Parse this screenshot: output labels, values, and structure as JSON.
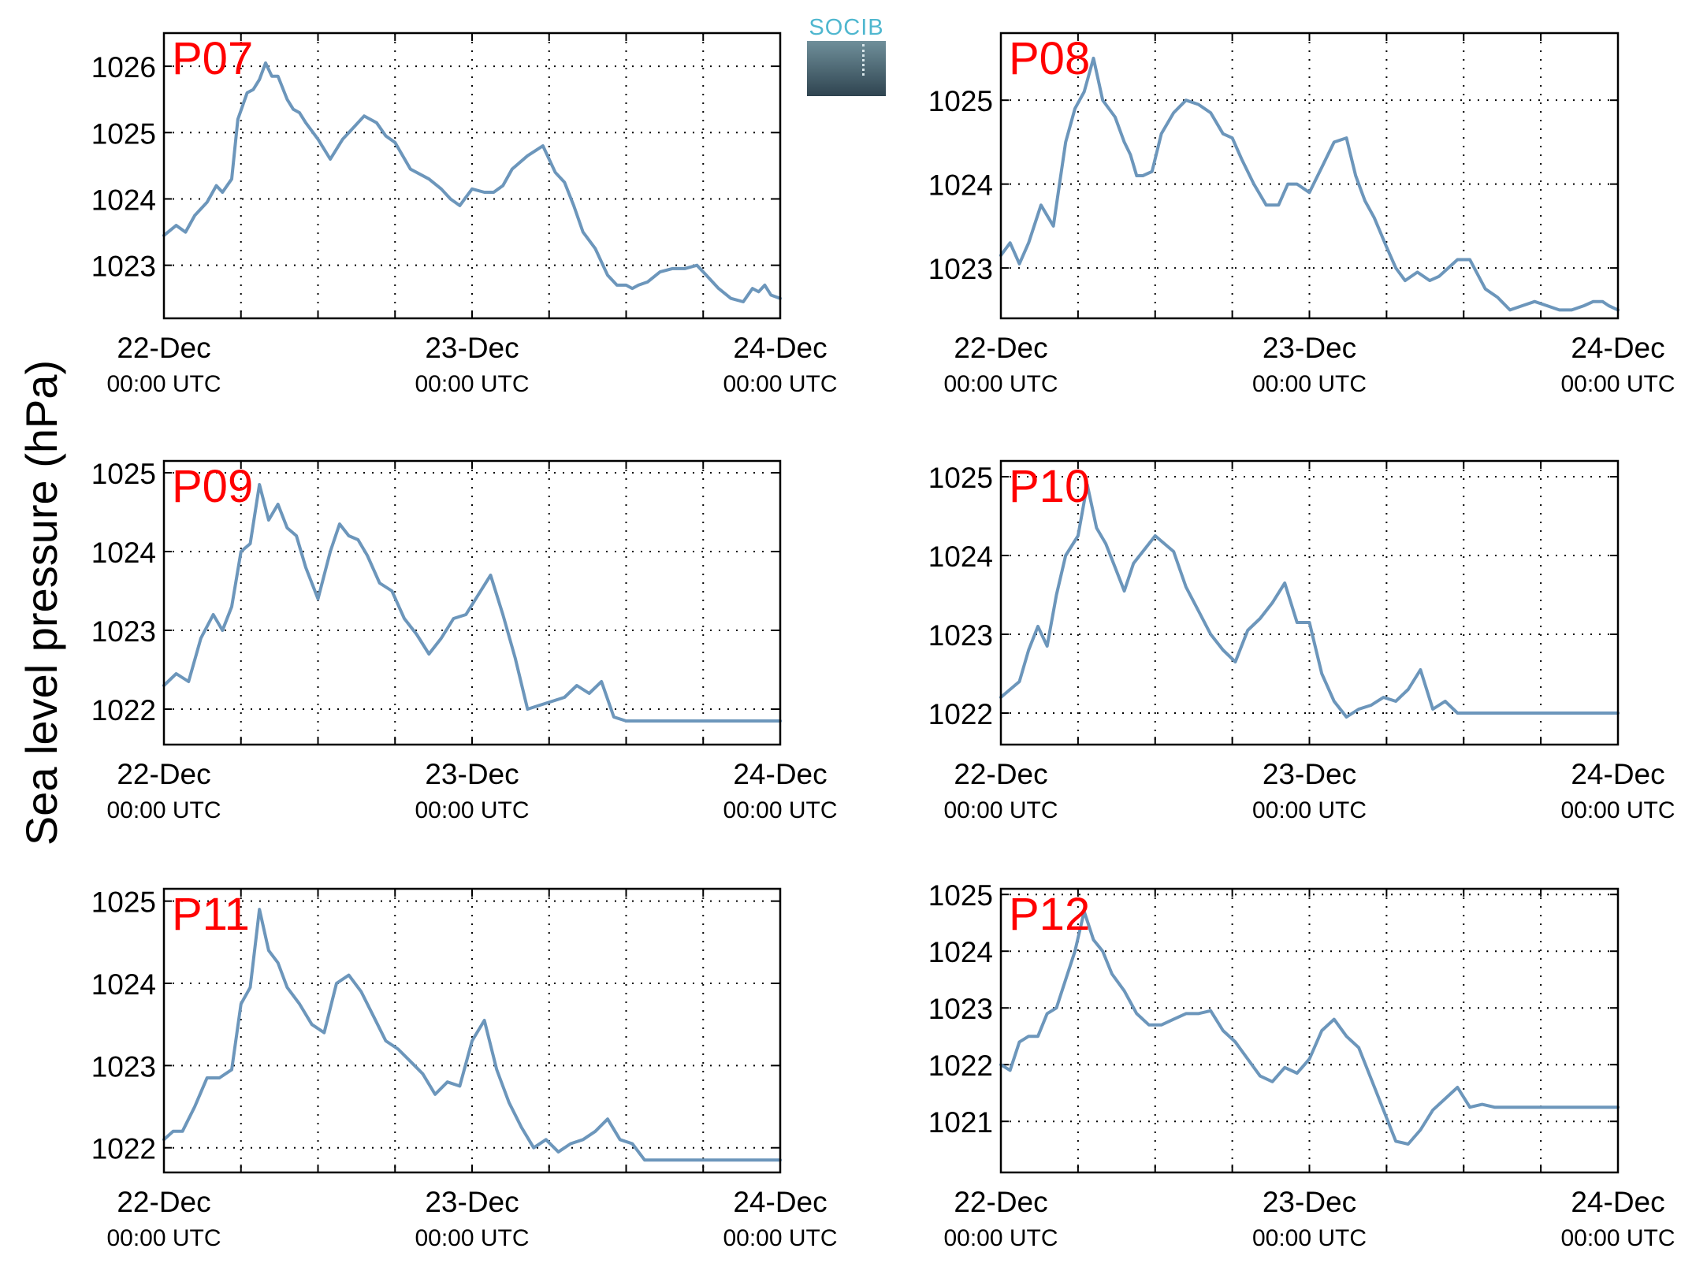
{
  "figure": {
    "ylabel": "Sea level pressure (hPa)",
    "logo_text": "SOCIB",
    "colors": {
      "line": "#6c96bb",
      "station_label": "#ff0000",
      "axes": "#000000",
      "grid": "#000000"
    }
  },
  "chart_data": [
    {
      "type": "line",
      "title": "P07",
      "xticks": [
        {
          "x": 0,
          "date": "22-Dec",
          "time": "00:00 UTC"
        },
        {
          "x": 1,
          "date": "23-Dec",
          "time": "00:00 UTC"
        },
        {
          "x": 2,
          "date": "24-Dec",
          "time": "00:00 UTC"
        }
      ],
      "xunit": "days since 22-Dec 00:00 UTC",
      "xlim": [
        0,
        2
      ],
      "ylim": [
        1022.2,
        1026.5
      ],
      "yticks": [
        1023,
        1024,
        1025,
        1026
      ],
      "grid": true,
      "series": [
        {
          "x": [
            0,
            0.04,
            0.07,
            0.1,
            0.14,
            0.17,
            0.19,
            0.22,
            0.24,
            0.27,
            0.29,
            0.31,
            0.33,
            0.35,
            0.37,
            0.4,
            0.42,
            0.44,
            0.46,
            0.5,
            0.54,
            0.58,
            0.61,
            0.65,
            0.69,
            0.72,
            0.75,
            0.8,
            0.86,
            0.9,
            0.93,
            0.96,
            1.0,
            1.04,
            1.07,
            1.1,
            1.13,
            1.18,
            1.23,
            1.27,
            1.3,
            1.33,
            1.36,
            1.4,
            1.44,
            1.47,
            1.5,
            1.52,
            1.54,
            1.57,
            1.61,
            1.65,
            1.69,
            1.73,
            1.76,
            1.8,
            1.84,
            1.88,
            1.91,
            1.93,
            1.95,
            1.97,
            2.0
          ],
          "y": [
            1023.45,
            1023.6,
            1023.5,
            1023.75,
            1023.95,
            1024.2,
            1024.1,
            1024.3,
            1025.2,
            1025.6,
            1025.65,
            1025.8,
            1026.05,
            1025.85,
            1025.85,
            1025.5,
            1025.35,
            1025.3,
            1025.15,
            1024.9,
            1024.6,
            1024.9,
            1025.05,
            1025.25,
            1025.15,
            1024.95,
            1024.85,
            1024.45,
            1024.3,
            1024.15,
            1024.0,
            1023.9,
            1024.15,
            1024.1,
            1024.1,
            1024.2,
            1024.45,
            1024.65,
            1024.8,
            1024.4,
            1024.25,
            1023.9,
            1023.5,
            1023.25,
            1022.85,
            1022.7,
            1022.7,
            1022.65,
            1022.7,
            1022.75,
            1022.9,
            1022.95,
            1022.95,
            1023.0,
            1022.85,
            1022.65,
            1022.5,
            1022.45,
            1022.65,
            1022.6,
            1022.7,
            1022.55,
            1022.5
          ]
        }
      ]
    },
    {
      "type": "line",
      "title": "P08",
      "xticks": [
        {
          "x": 0,
          "date": "22-Dec",
          "time": "00:00 UTC"
        },
        {
          "x": 1,
          "date": "23-Dec",
          "time": "00:00 UTC"
        },
        {
          "x": 2,
          "date": "24-Dec",
          "time": "00:00 UTC"
        }
      ],
      "xunit": "days since 22-Dec 00:00 UTC",
      "xlim": [
        0,
        2
      ],
      "ylim": [
        1022.4,
        1025.8
      ],
      "yticks": [
        1023,
        1024,
        1025
      ],
      "grid": true,
      "series": [
        {
          "x": [
            0,
            0.03,
            0.06,
            0.09,
            0.13,
            0.17,
            0.19,
            0.21,
            0.24,
            0.27,
            0.3,
            0.33,
            0.37,
            0.4,
            0.42,
            0.44,
            0.46,
            0.49,
            0.52,
            0.56,
            0.6,
            0.64,
            0.68,
            0.72,
            0.75,
            0.78,
            0.82,
            0.86,
            0.9,
            0.93,
            0.96,
            1.0,
            1.04,
            1.08,
            1.12,
            1.15,
            1.18,
            1.21,
            1.25,
            1.28,
            1.31,
            1.35,
            1.39,
            1.42,
            1.45,
            1.48,
            1.52,
            1.57,
            1.61,
            1.65,
            1.69,
            1.73,
            1.77,
            1.81,
            1.85,
            1.89,
            1.92,
            1.95,
            1.97,
            2.0
          ],
          "y": [
            1023.15,
            1023.3,
            1023.05,
            1023.3,
            1023.75,
            1023.5,
            1024.0,
            1024.5,
            1024.9,
            1025.1,
            1025.5,
            1025.0,
            1024.8,
            1024.5,
            1024.35,
            1024.1,
            1024.1,
            1024.15,
            1024.6,
            1024.85,
            1025.0,
            1024.95,
            1024.85,
            1024.6,
            1024.55,
            1024.3,
            1024.0,
            1023.75,
            1023.75,
            1024.0,
            1024.0,
            1023.9,
            1024.2,
            1024.5,
            1024.55,
            1024.1,
            1023.8,
            1023.6,
            1023.25,
            1023.0,
            1022.85,
            1022.95,
            1022.85,
            1022.9,
            1023.0,
            1023.1,
            1023.1,
            1022.75,
            1022.65,
            1022.5,
            1022.55,
            1022.6,
            1022.55,
            1022.5,
            1022.5,
            1022.55,
            1022.6,
            1022.6,
            1022.55,
            1022.5
          ]
        }
      ]
    },
    {
      "type": "line",
      "title": "P09",
      "xticks": [
        {
          "x": 0,
          "date": "22-Dec",
          "time": "00:00 UTC"
        },
        {
          "x": 1,
          "date": "23-Dec",
          "time": "00:00 UTC"
        },
        {
          "x": 2,
          "date": "24-Dec",
          "time": "00:00 UTC"
        }
      ],
      "xunit": "days since 22-Dec 00:00 UTC",
      "xlim": [
        0,
        2
      ],
      "ylim": [
        1021.55,
        1025.15
      ],
      "yticks": [
        1022,
        1023,
        1024,
        1025
      ],
      "grid": true,
      "series": [
        {
          "x": [
            0,
            0.04,
            0.08,
            0.12,
            0.16,
            0.19,
            0.22,
            0.25,
            0.28,
            0.31,
            0.34,
            0.37,
            0.4,
            0.43,
            0.46,
            0.5,
            0.54,
            0.57,
            0.6,
            0.63,
            0.66,
            0.7,
            0.74,
            0.78,
            0.82,
            0.86,
            0.9,
            0.94,
            0.98,
            1.02,
            1.06,
            1.1,
            1.14,
            1.18,
            1.22,
            1.26,
            1.3,
            1.34,
            1.38,
            1.42,
            1.46,
            1.5,
            1.54,
            1.58,
            1.62,
            1.66,
            1.7,
            1.74,
            1.78,
            1.82,
            1.86,
            1.9,
            1.94,
            1.98,
            2.0
          ],
          "y": [
            1022.3,
            1022.45,
            1022.35,
            1022.9,
            1023.2,
            1023.0,
            1023.3,
            1024.0,
            1024.1,
            1024.85,
            1024.4,
            1024.6,
            1024.3,
            1024.2,
            1023.8,
            1023.4,
            1024.0,
            1024.35,
            1024.2,
            1024.15,
            1023.95,
            1023.6,
            1023.5,
            1023.15,
            1022.95,
            1022.7,
            1022.9,
            1023.15,
            1023.2,
            1023.45,
            1023.7,
            1023.2,
            1022.65,
            1022.0,
            1022.05,
            1022.1,
            1022.15,
            1022.3,
            1022.2,
            1022.35,
            1021.9,
            1021.85,
            1021.85,
            1021.85,
            1021.85,
            1021.85,
            1021.85,
            1021.85,
            1021.85,
            1021.85,
            1021.85,
            1021.85,
            1021.85,
            1021.85,
            1021.85
          ]
        }
      ]
    },
    {
      "type": "line",
      "title": "P10",
      "xticks": [
        {
          "x": 0,
          "date": "22-Dec",
          "time": "00:00 UTC"
        },
        {
          "x": 1,
          "date": "23-Dec",
          "time": "00:00 UTC"
        },
        {
          "x": 2,
          "date": "24-Dec",
          "time": "00:00 UTC"
        }
      ],
      "xunit": "days since 22-Dec 00:00 UTC",
      "xlim": [
        0,
        2
      ],
      "ylim": [
        1021.6,
        1025.2
      ],
      "yticks": [
        1022,
        1023,
        1024,
        1025
      ],
      "grid": true,
      "series": [
        {
          "x": [
            0,
            0.03,
            0.06,
            0.09,
            0.12,
            0.15,
            0.18,
            0.21,
            0.25,
            0.28,
            0.31,
            0.34,
            0.37,
            0.4,
            0.43,
            0.46,
            0.5,
            0.53,
            0.56,
            0.6,
            0.64,
            0.68,
            0.72,
            0.76,
            0.8,
            0.84,
            0.88,
            0.92,
            0.96,
            1.0,
            1.04,
            1.08,
            1.12,
            1.16,
            1.2,
            1.24,
            1.28,
            1.32,
            1.36,
            1.4,
            1.44,
            1.48,
            1.52,
            1.56,
            1.6,
            1.64,
            1.68,
            1.72,
            1.76,
            1.8,
            1.84,
            1.88,
            1.92,
            1.96,
            2.0
          ],
          "y": [
            1022.2,
            1022.3,
            1022.4,
            1022.8,
            1023.1,
            1022.85,
            1023.5,
            1024.0,
            1024.25,
            1024.9,
            1024.35,
            1024.15,
            1023.85,
            1023.55,
            1023.9,
            1024.05,
            1024.25,
            1024.15,
            1024.05,
            1023.6,
            1023.3,
            1023.0,
            1022.8,
            1022.65,
            1023.05,
            1023.2,
            1023.4,
            1023.65,
            1023.15,
            1023.15,
            1022.5,
            1022.15,
            1021.95,
            1022.05,
            1022.1,
            1022.2,
            1022.15,
            1022.3,
            1022.55,
            1022.05,
            1022.15,
            1022.0,
            1022.0,
            1022.0,
            1022.0,
            1022.0,
            1022.0,
            1022.0,
            1022.0,
            1022.0,
            1022.0,
            1022.0,
            1022.0,
            1022.0,
            1022.0
          ]
        }
      ]
    },
    {
      "type": "line",
      "title": "P11",
      "xticks": [
        {
          "x": 0,
          "date": "22-Dec",
          "time": "00:00 UTC"
        },
        {
          "x": 1,
          "date": "23-Dec",
          "time": "00:00 UTC"
        },
        {
          "x": 2,
          "date": "24-Dec",
          "time": "00:00 UTC"
        }
      ],
      "xunit": "days since 22-Dec 00:00 UTC",
      "xlim": [
        0,
        2
      ],
      "ylim": [
        1021.7,
        1025.15
      ],
      "yticks": [
        1022,
        1023,
        1024,
        1025
      ],
      "grid": true,
      "series": [
        {
          "x": [
            0,
            0.03,
            0.06,
            0.1,
            0.14,
            0.18,
            0.22,
            0.25,
            0.28,
            0.31,
            0.34,
            0.37,
            0.4,
            0.44,
            0.48,
            0.52,
            0.56,
            0.6,
            0.64,
            0.68,
            0.72,
            0.76,
            0.8,
            0.84,
            0.88,
            0.92,
            0.96,
            1.0,
            1.04,
            1.08,
            1.12,
            1.16,
            1.2,
            1.24,
            1.28,
            1.32,
            1.36,
            1.4,
            1.44,
            1.48,
            1.52,
            1.56,
            1.6,
            1.64,
            1.68,
            1.72,
            1.76,
            1.8,
            1.84,
            1.88,
            1.92,
            1.96,
            2.0
          ],
          "y": [
            1022.1,
            1022.2,
            1022.2,
            1022.5,
            1022.85,
            1022.85,
            1022.95,
            1023.75,
            1023.95,
            1024.9,
            1024.4,
            1024.25,
            1023.95,
            1023.75,
            1023.5,
            1023.4,
            1024.0,
            1024.1,
            1023.9,
            1023.6,
            1023.3,
            1023.2,
            1023.05,
            1022.9,
            1022.65,
            1022.8,
            1022.75,
            1023.3,
            1023.55,
            1022.95,
            1022.55,
            1022.25,
            1022.0,
            1022.1,
            1021.95,
            1022.05,
            1022.1,
            1022.2,
            1022.35,
            1022.1,
            1022.05,
            1021.85,
            1021.85,
            1021.85,
            1021.85,
            1021.85,
            1021.85,
            1021.85,
            1021.85,
            1021.85,
            1021.85,
            1021.85,
            1021.85
          ]
        }
      ]
    },
    {
      "type": "line",
      "title": "P12",
      "xticks": [
        {
          "x": 0,
          "date": "22-Dec",
          "time": "00:00 UTC"
        },
        {
          "x": 1,
          "date": "23-Dec",
          "time": "00:00 UTC"
        },
        {
          "x": 2,
          "date": "24-Dec",
          "time": "00:00 UTC"
        }
      ],
      "xunit": "days since 22-Dec 00:00 UTC",
      "xlim": [
        0,
        2
      ],
      "ylim": [
        1020.1,
        1025.1
      ],
      "yticks": [
        1021,
        1022,
        1023,
        1024,
        1025
      ],
      "grid": true,
      "series": [
        {
          "x": [
            0,
            0.03,
            0.06,
            0.09,
            0.12,
            0.15,
            0.18,
            0.21,
            0.24,
            0.27,
            0.3,
            0.33,
            0.36,
            0.4,
            0.44,
            0.48,
            0.52,
            0.56,
            0.6,
            0.64,
            0.68,
            0.72,
            0.76,
            0.8,
            0.84,
            0.88,
            0.92,
            0.96,
            1.0,
            1.04,
            1.08,
            1.12,
            1.16,
            1.2,
            1.24,
            1.28,
            1.32,
            1.36,
            1.4,
            1.44,
            1.48,
            1.52,
            1.56,
            1.6,
            1.64,
            1.68,
            1.72,
            1.76,
            1.8,
            1.84,
            1.88,
            1.92,
            1.96,
            2.0
          ],
          "y": [
            1022.0,
            1021.9,
            1022.4,
            1022.5,
            1022.5,
            1022.9,
            1023.0,
            1023.5,
            1024.0,
            1024.7,
            1024.2,
            1024.0,
            1023.6,
            1023.3,
            1022.9,
            1022.7,
            1022.7,
            1022.8,
            1022.9,
            1022.9,
            1022.95,
            1022.6,
            1022.4,
            1022.1,
            1021.8,
            1021.7,
            1021.95,
            1021.85,
            1022.1,
            1022.6,
            1022.8,
            1022.5,
            1022.3,
            1021.75,
            1021.2,
            1020.65,
            1020.6,
            1020.85,
            1021.2,
            1021.4,
            1021.6,
            1021.25,
            1021.3,
            1021.25,
            1021.25,
            1021.25,
            1021.25,
            1021.25,
            1021.25,
            1021.25,
            1021.25,
            1021.25,
            1021.25,
            1021.25
          ]
        }
      ]
    }
  ]
}
